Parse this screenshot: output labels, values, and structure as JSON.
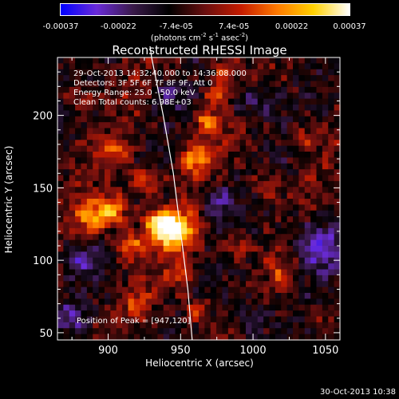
{
  "colorbar": {
    "ticks": [
      "-0.00037",
      "-0.00022",
      "-7.4e-05",
      "7.4e-05",
      "0.00022",
      "0.00037"
    ],
    "unit_parts": [
      "(photons cm",
      "-2",
      " s",
      "-1",
      " asec",
      "-2",
      ")"
    ]
  },
  "title": "Reconstructed RHESSI Image",
  "info_lines": [
    "29-Oct-2013 14:32:40.000 to 14:36:08.000",
    "Detectors: 3F 5F 6F 7F 8F 9F, Att 0",
    "Energy Range: 25.0 - 50.0 keV",
    "Clean     Total counts: 6.98E+03"
  ],
  "peak_text": "Position of Peak = [947,120]",
  "timestamp": "30-Oct-2013 10:38",
  "chart_data": {
    "type": "heatmap",
    "title": "Reconstructed RHESSI Image",
    "xlabel": "Heliocentric X (arcsec)",
    "ylabel": "Heliocentric Y (arcsec)",
    "xlim": [
      865,
      1060
    ],
    "ylim": [
      45,
      240
    ],
    "xticks": [
      900,
      950,
      1000,
      1050
    ],
    "yticks": [
      50,
      100,
      150,
      200
    ],
    "colorbar_range": [
      -0.00037,
      0.00037
    ],
    "peak": [
      947,
      120
    ],
    "limb_curve": [
      [
        930,
        240
      ],
      [
        938,
        200
      ],
      [
        945,
        160
      ],
      [
        950,
        120
      ],
      [
        955,
        80
      ],
      [
        958,
        45
      ]
    ],
    "blobs": [
      {
        "x": 947,
        "y": 120,
        "r": 14,
        "v": 1.0
      },
      {
        "x": 935,
        "y": 125,
        "r": 10,
        "v": 0.8
      },
      {
        "x": 890,
        "y": 130,
        "r": 12,
        "v": 0.75
      },
      {
        "x": 905,
        "y": 135,
        "r": 10,
        "v": 0.7
      },
      {
        "x": 915,
        "y": 110,
        "r": 10,
        "v": 0.6
      },
      {
        "x": 960,
        "y": 170,
        "r": 10,
        "v": 0.7
      },
      {
        "x": 968,
        "y": 195,
        "r": 9,
        "v": 0.65
      },
      {
        "x": 975,
        "y": 215,
        "r": 8,
        "v": 0.6
      },
      {
        "x": 980,
        "y": 232,
        "r": 8,
        "v": 0.55
      },
      {
        "x": 925,
        "y": 155,
        "r": 10,
        "v": 0.55
      },
      {
        "x": 905,
        "y": 175,
        "r": 10,
        "v": 0.45
      },
      {
        "x": 950,
        "y": 90,
        "r": 9,
        "v": 0.5
      },
      {
        "x": 960,
        "y": 65,
        "r": 9,
        "v": 0.5
      },
      {
        "x": 920,
        "y": 70,
        "r": 9,
        "v": 0.4
      },
      {
        "x": 1010,
        "y": 150,
        "r": 10,
        "v": 0.4
      },
      {
        "x": 1035,
        "y": 185,
        "r": 8,
        "v": 0.35
      },
      {
        "x": 1020,
        "y": 90,
        "r": 9,
        "v": 0.35
      },
      {
        "x": 990,
        "y": 110,
        "r": 9,
        "v": 0.4
      },
      {
        "x": 880,
        "y": 215,
        "r": 9,
        "v": 0.35
      },
      {
        "x": 1045,
        "y": 60,
        "r": 8,
        "v": 0.3
      }
    ],
    "cold_spots": [
      {
        "x": 1045,
        "y": 110,
        "r": 18,
        "v": -0.55
      },
      {
        "x": 1000,
        "y": 210,
        "r": 14,
        "v": -0.4
      },
      {
        "x": 975,
        "y": 140,
        "r": 12,
        "v": -0.45
      },
      {
        "x": 880,
        "y": 100,
        "r": 10,
        "v": -0.4
      },
      {
        "x": 1000,
        "y": 60,
        "r": 12,
        "v": -0.45
      },
      {
        "x": 940,
        "y": 215,
        "r": 10,
        "v": -0.35
      },
      {
        "x": 875,
        "y": 60,
        "r": 10,
        "v": -0.35
      }
    ]
  },
  "colors": {
    "axis": "#ffffff",
    "colorbar_stops": [
      "#0000ff",
      "#6a2bd8",
      "#3a1a4a",
      "#000000",
      "#6a0f0f",
      "#c61c00",
      "#ff7a00",
      "#ffd000",
      "#ffffff"
    ]
  }
}
